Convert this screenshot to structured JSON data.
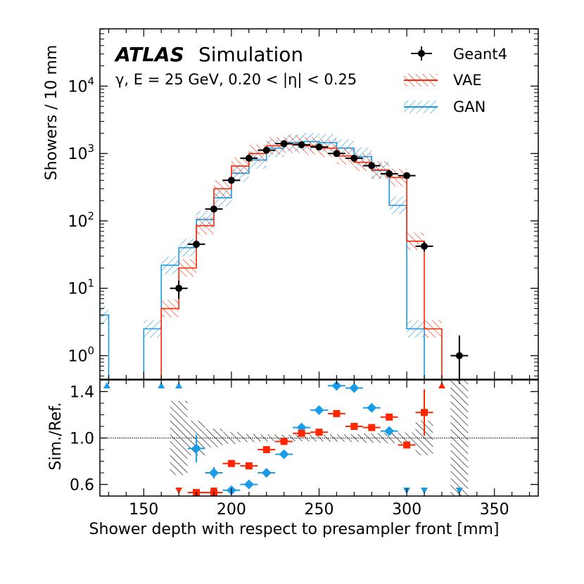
{
  "chart_data": {
    "type": "histogram-ratio",
    "title": "ATLAS",
    "title_suffix": "Simulation",
    "subtitle": "γ, E = 25 GeV, 0.20 < |η| < 0.25",
    "xlabel": "Shower depth with respect to presampler front [mm]",
    "ylabel_top": "Showers / 10 mm",
    "ylabel_bottom": "Sim./Ref.",
    "xlim": [
      125,
      375
    ],
    "ylim_top_log10": [
      -0.35,
      4.85
    ],
    "ylim_bottom": [
      0.5,
      1.5
    ],
    "x_ticks": [
      150,
      200,
      250,
      300,
      350
    ],
    "y_ticks_top": [
      {
        "exp": 0,
        "label_base": "10",
        "label_exp": "0"
      },
      {
        "exp": 1,
        "label_base": "10",
        "label_exp": "1"
      },
      {
        "exp": 2,
        "label_base": "10",
        "label_exp": "2"
      },
      {
        "exp": 3,
        "label_base": "10",
        "label_exp": "3"
      },
      {
        "exp": 4,
        "label_base": "10",
        "label_exp": "4"
      }
    ],
    "y_ticks_bottom": [
      {
        "value": 0.6,
        "label": "0.6"
      },
      {
        "value": 1.0,
        "label": "1.0"
      },
      {
        "value": 1.4,
        "label": "1.4"
      }
    ],
    "colors": {
      "geant4": "#000000",
      "vae": "#ff2600",
      "gan": "#1a9be6"
    },
    "legend": [
      {
        "key": "geant4",
        "label": "Geant4"
      },
      {
        "key": "vae",
        "label": "VAE"
      },
      {
        "key": "gan",
        "label": "GAN"
      }
    ],
    "bin_width": 10,
    "geant4": [
      {
        "x": 170,
        "y": 10,
        "err": 3
      },
      {
        "x": 180,
        "y": 45,
        "err": 6
      },
      {
        "x": 190,
        "y": 150,
        "err": 12
      },
      {
        "x": 200,
        "y": 400,
        "err": 20
      },
      {
        "x": 210,
        "y": 850,
        "err": 30
      },
      {
        "x": 220,
        "y": 1120,
        "err": 33
      },
      {
        "x": 230,
        "y": 1400,
        "err": 37
      },
      {
        "x": 240,
        "y": 1350,
        "err": 37
      },
      {
        "x": 250,
        "y": 1250,
        "err": 35
      },
      {
        "x": 260,
        "y": 1000,
        "err": 32
      },
      {
        "x": 270,
        "y": 850,
        "err": 29
      },
      {
        "x": 280,
        "y": 660,
        "err": 26
      },
      {
        "x": 290,
        "y": 500,
        "err": 22
      },
      {
        "x": 300,
        "y": 470,
        "err": 22
      },
      {
        "x": 310,
        "y": 42,
        "err": 7
      },
      {
        "x": 330,
        "y": 1,
        "err": 1
      }
    ],
    "vae": [
      {
        "x": 165,
        "y": 5
      },
      {
        "x": 175,
        "y": 20
      },
      {
        "x": 185,
        "y": 85
      },
      {
        "x": 195,
        "y": 300
      },
      {
        "x": 205,
        "y": 650
      },
      {
        "x": 215,
        "y": 1000
      },
      {
        "x": 225,
        "y": 1300
      },
      {
        "x": 235,
        "y": 1380
      },
      {
        "x": 245,
        "y": 1300
      },
      {
        "x": 255,
        "y": 1200
      },
      {
        "x": 265,
        "y": 920
      },
      {
        "x": 275,
        "y": 740
      },
      {
        "x": 285,
        "y": 570
      },
      {
        "x": 295,
        "y": 440
      },
      {
        "x": 305,
        "y": 50
      },
      {
        "x": 315,
        "y": 2.5
      }
    ],
    "gan": [
      {
        "x": 125,
        "y": 4
      },
      {
        "x": 155,
        "y": 2.5
      },
      {
        "x": 165,
        "y": 22
      },
      {
        "x": 175,
        "y": 40
      },
      {
        "x": 185,
        "y": 105
      },
      {
        "x": 195,
        "y": 220
      },
      {
        "x": 205,
        "y": 510
      },
      {
        "x": 215,
        "y": 800
      },
      {
        "x": 225,
        "y": 1200
      },
      {
        "x": 235,
        "y": 1450
      },
      {
        "x": 245,
        "y": 1500
      },
      {
        "x": 255,
        "y": 1450
      },
      {
        "x": 265,
        "y": 1200
      },
      {
        "x": 275,
        "y": 900
      },
      {
        "x": 285,
        "y": 560
      },
      {
        "x": 295,
        "y": 170
      },
      {
        "x": 305,
        "y": 2.5
      }
    ],
    "ref_band": [
      {
        "x": 170,
        "lo": 0.68,
        "hi": 1.32
      },
      {
        "x": 180,
        "lo": 0.85,
        "hi": 1.15
      },
      {
        "x": 190,
        "lo": 0.92,
        "hi": 1.08
      },
      {
        "x": 200,
        "lo": 0.95,
        "hi": 1.05
      },
      {
        "x": 210,
        "lo": 0.965,
        "hi": 1.035
      },
      {
        "x": 220,
        "lo": 0.97,
        "hi": 1.03
      },
      {
        "x": 230,
        "lo": 0.973,
        "hi": 1.027
      },
      {
        "x": 240,
        "lo": 0.973,
        "hi": 1.027
      },
      {
        "x": 250,
        "lo": 0.972,
        "hi": 1.028
      },
      {
        "x": 260,
        "lo": 0.968,
        "hi": 1.032
      },
      {
        "x": 270,
        "lo": 0.966,
        "hi": 1.034
      },
      {
        "x": 280,
        "lo": 0.96,
        "hi": 1.04
      },
      {
        "x": 290,
        "lo": 0.955,
        "hi": 1.045
      },
      {
        "x": 300,
        "lo": 0.953,
        "hi": 1.047
      },
      {
        "x": 310,
        "lo": 0.85,
        "hi": 1.15
      },
      {
        "x": 330,
        "lo": 0.5,
        "hi": 1.5
      }
    ],
    "ratio_vae": [
      {
        "x": 180,
        "y": 0.53,
        "err": 0.0
      },
      {
        "x": 190,
        "y": 0.53,
        "err": 0.0
      },
      {
        "x": 200,
        "y": 0.78,
        "err": 0.02
      },
      {
        "x": 210,
        "y": 0.76,
        "err": 0.02
      },
      {
        "x": 220,
        "y": 0.9,
        "err": 0.02
      },
      {
        "x": 230,
        "y": 0.97,
        "err": 0.02
      },
      {
        "x": 240,
        "y": 1.04,
        "err": 0.02
      },
      {
        "x": 250,
        "y": 1.05,
        "err": 0.02
      },
      {
        "x": 260,
        "y": 1.21,
        "err": 0.02
      },
      {
        "x": 270,
        "y": 1.1,
        "err": 0.02
      },
      {
        "x": 280,
        "y": 1.09,
        "err": 0.02
      },
      {
        "x": 290,
        "y": 1.18,
        "err": 0.03
      },
      {
        "x": 300,
        "y": 0.94,
        "err": 0.03
      },
      {
        "x": 310,
        "y": 1.22,
        "err": 0.2
      }
    ],
    "ratio_gan": [
      {
        "x": 180,
        "y": 0.91,
        "err": 0.12
      },
      {
        "x": 190,
        "y": 0.7,
        "err": 0.05
      },
      {
        "x": 200,
        "y": 0.55,
        "err": 0.02
      },
      {
        "x": 210,
        "y": 0.6,
        "err": 0.02
      },
      {
        "x": 220,
        "y": 0.7,
        "err": 0.02
      },
      {
        "x": 230,
        "y": 0.86,
        "err": 0.02
      },
      {
        "x": 240,
        "y": 1.09,
        "err": 0.02
      },
      {
        "x": 250,
        "y": 1.24,
        "err": 0.02
      },
      {
        "x": 260,
        "y": 1.45,
        "err": 0.02
      },
      {
        "x": 270,
        "y": 1.43,
        "err": 0.02
      },
      {
        "x": 280,
        "y": 1.26,
        "err": 0.02
      },
      {
        "x": 290,
        "y": 1.06,
        "err": 0.02
      }
    ],
    "overflow_markers": [
      {
        "series": "gan",
        "x": 129,
        "dir": "up"
      },
      {
        "series": "gan",
        "x": 160,
        "dir": "up"
      },
      {
        "series": "gan",
        "x": 170,
        "dir": "up"
      },
      {
        "series": "vae",
        "x": 170,
        "dir": "down"
      },
      {
        "series": "vae",
        "x": 190,
        "dir": "down"
      },
      {
        "series": "gan",
        "x": 300,
        "dir": "down"
      },
      {
        "series": "gan",
        "x": 310,
        "dir": "down"
      },
      {
        "series": "vae",
        "x": 320,
        "dir": "up"
      },
      {
        "series": "vae",
        "x": 330,
        "dir": "down"
      },
      {
        "series": "gan",
        "x": 330,
        "dir": "down"
      }
    ]
  }
}
